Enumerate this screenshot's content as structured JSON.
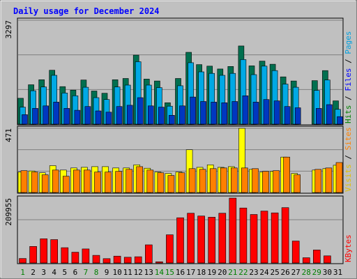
{
  "chart_data": {
    "type": "bar",
    "title": "Daily usage for December 2024",
    "days": [
      "1",
      "2",
      "3",
      "4",
      "5",
      "6",
      "7",
      "8",
      "9",
      "10",
      "11",
      "12",
      "13",
      "14",
      "15",
      "16",
      "17",
      "18",
      "19",
      "20",
      "21",
      "22",
      "23",
      "24",
      "25",
      "26",
      "27",
      "28",
      "29",
      "30",
      "31"
    ],
    "weekend_days": [
      1,
      7,
      8,
      14,
      15,
      21,
      22,
      28,
      29
    ],
    "panels": [
      {
        "ymax_label": "3297",
        "ymax": 3297,
        "gridlines": 3,
        "side_labels": [
          {
            "text": "Hits",
            "color": "#008000"
          },
          {
            "text": " / ",
            "color": "#000000"
          },
          {
            "text": "Files",
            "color": "#0000ff"
          },
          {
            "text": " / ",
            "color": "#000000"
          },
          {
            "text": "Pages",
            "color": "#00a0e0"
          }
        ],
        "series": [
          {
            "name": "Hits",
            "color": "#006f4f",
            "values": [
              820,
              1250,
              1410,
              1710,
              1190,
              1080,
              1400,
              1050,
              980,
              1410,
              1450,
              2190,
              1430,
              1370,
              680,
              1450,
              2280,
              1890,
              1840,
              1750,
              1830,
              2480,
              1850,
              2000,
              1900,
              1500,
              1370,
              0,
              1380,
              1700,
              740
            ]
          },
          {
            "name": "Files",
            "color": "#00a9e5",
            "values": [
              540,
              1060,
              1180,
              1550,
              990,
              900,
              1170,
              840,
              780,
              1180,
              1240,
              1980,
              1240,
              1160,
              570,
              1220,
              1950,
              1660,
              1610,
              1550,
              1610,
              2050,
              1570,
              1840,
              1700,
              1270,
              1170,
              0,
              1070,
              1400,
              470
            ]
          },
          {
            "name": "Pages",
            "color": "#0037c0",
            "values": [
              300,
              500,
              580,
              700,
              500,
              440,
              560,
              420,
              380,
              560,
              600,
              840,
              580,
              540,
              280,
              580,
              860,
              720,
              700,
              680,
              720,
              900,
              700,
              780,
              740,
              560,
              520,
              0,
              500,
              620,
              240
            ]
          }
        ]
      },
      {
        "ymax_label": "471",
        "ymax": 471,
        "gridlines": 3,
        "side_labels": [
          {
            "text": "Visits",
            "color": "#e0c000"
          },
          {
            "text": " / ",
            "color": "#000000"
          },
          {
            "text": "Sites",
            "color": "#ff8000"
          }
        ],
        "series": [
          {
            "name": "Visits",
            "color": "#ffff00",
            "values": [
              150,
              158,
              145,
              197,
              165,
              180,
              185,
              190,
              190,
              180,
              180,
              203,
              178,
              150,
              140,
              150,
              314,
              185,
              203,
              185,
              190,
              471,
              170,
              150,
              155,
              260,
              140,
              0,
              165,
              175,
              200
            ]
          },
          {
            "name": "Sites",
            "color": "#ff8000",
            "values": [
              160,
              150,
              130,
              165,
              120,
              165,
              165,
              150,
              150,
              155,
              170,
              190,
              165,
              145,
              125,
              145,
              175,
              170,
              175,
              180,
              180,
              180,
              175,
              155,
              160,
              260,
              130,
              0,
              170,
              180,
              220
            ]
          }
        ]
      },
      {
        "ymax_label": "209955",
        "ymax": 209955,
        "gridlines": 1,
        "side_labels": [
          {
            "text": "KBytes",
            "color": "#ff0000"
          }
        ],
        "series": [
          {
            "name": "KBytes",
            "color": "#ff0000",
            "values": [
              14500,
              53400,
              78300,
              75600,
              49500,
              34700,
              45400,
              24500,
              13900,
              22200,
              18600,
              20100,
              58600,
              3800,
              91300,
              146200,
              161000,
              152000,
              148000,
              161000,
              211000,
              178000,
              157000,
              168000,
              162000,
              179000,
              71000,
              17000,
              42000,
              23000,
              0
            ]
          }
        ]
      }
    ]
  }
}
